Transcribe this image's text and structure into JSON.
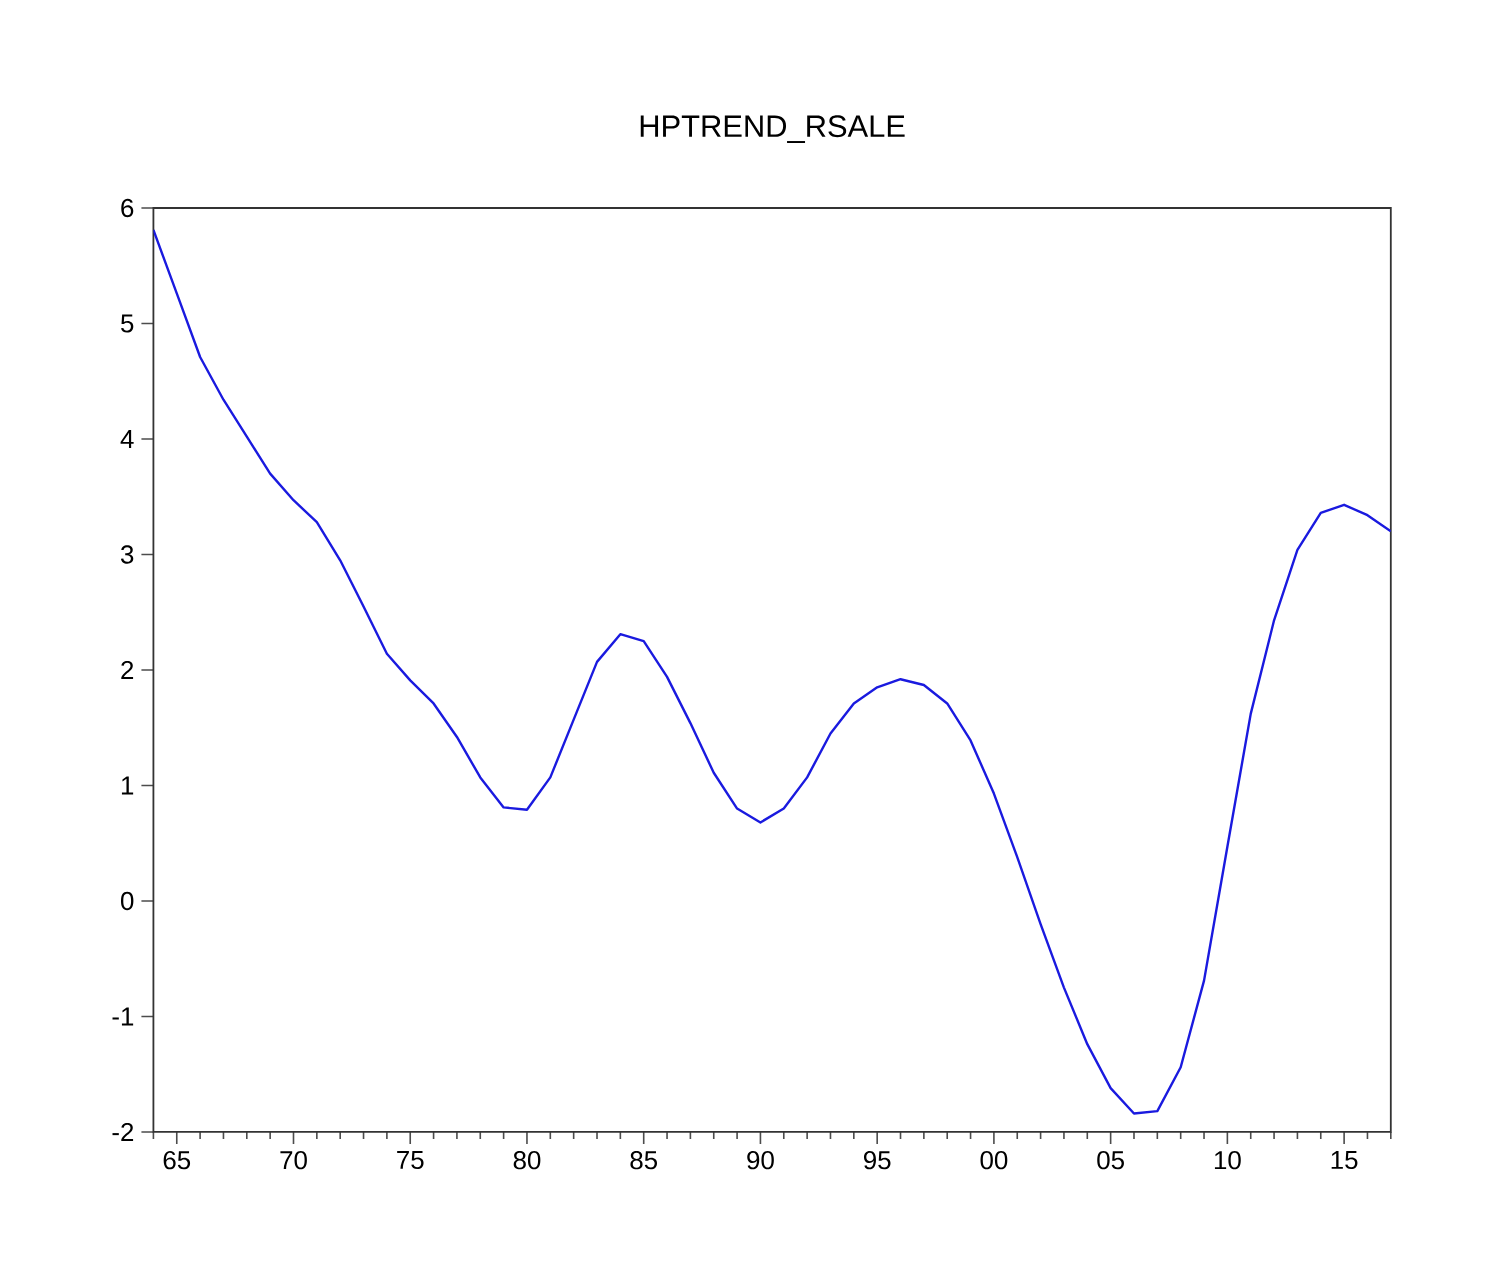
{
  "chart_data": {
    "type": "line",
    "title": "HPTREND_RSALE",
    "x": [
      1964,
      1965,
      1966,
      1967,
      1968,
      1969,
      1970,
      1971,
      1972,
      1973,
      1974,
      1975,
      1976,
      1977,
      1978,
      1979,
      1980,
      1981,
      1982,
      1983,
      1984,
      1985,
      1986,
      1987,
      1988,
      1989,
      1990,
      1991,
      1992,
      1993,
      1994,
      1995,
      1996,
      1997,
      1998,
      1999,
      2000,
      2001,
      2002,
      2003,
      2004,
      2005,
      2006,
      2007,
      2008,
      2009,
      2010,
      2011,
      2012,
      2013,
      2014,
      2015,
      2016,
      2017
    ],
    "series": [
      {
        "color": "#1a1adf",
        "values": [
          5.81,
          5.26,
          4.71,
          4.34,
          4.02,
          3.7,
          3.47,
          3.28,
          2.95,
          2.55,
          2.14,
          1.91,
          1.71,
          1.42,
          1.07,
          0.81,
          0.79,
          1.07,
          1.57,
          2.07,
          2.31,
          2.25,
          1.94,
          1.54,
          1.11,
          0.8,
          0.68,
          0.8,
          1.07,
          1.45,
          1.71,
          1.85,
          1.92,
          1.87,
          1.71,
          1.39,
          0.93,
          0.38,
          -0.2,
          -0.75,
          -1.24,
          -1.62,
          -1.84,
          -1.82,
          -1.44,
          -0.69,
          0.47,
          1.62,
          2.43,
          3.04,
          3.36,
          3.43,
          3.34,
          3.2
        ]
      }
    ],
    "xlim": [
      1964,
      2017
    ],
    "ylim": [
      -2,
      6
    ],
    "yticks": [
      -2,
      -1,
      0,
      1,
      2,
      3,
      4,
      5,
      6
    ],
    "xticks": [
      {
        "value": 1964,
        "label": null
      },
      {
        "value": 1965,
        "label": "65"
      },
      {
        "value": 1966,
        "label": null
      },
      {
        "value": 1967,
        "label": null
      },
      {
        "value": 1968,
        "label": null
      },
      {
        "value": 1969,
        "label": null
      },
      {
        "value": 1970,
        "label": "70"
      },
      {
        "value": 1971,
        "label": null
      },
      {
        "value": 1972,
        "label": null
      },
      {
        "value": 1973,
        "label": null
      },
      {
        "value": 1974,
        "label": null
      },
      {
        "value": 1975,
        "label": "75"
      },
      {
        "value": 1976,
        "label": null
      },
      {
        "value": 1977,
        "label": null
      },
      {
        "value": 1978,
        "label": null
      },
      {
        "value": 1979,
        "label": null
      },
      {
        "value": 1980,
        "label": "80"
      },
      {
        "value": 1981,
        "label": null
      },
      {
        "value": 1982,
        "label": null
      },
      {
        "value": 1983,
        "label": null
      },
      {
        "value": 1984,
        "label": null
      },
      {
        "value": 1985,
        "label": "85"
      },
      {
        "value": 1986,
        "label": null
      },
      {
        "value": 1987,
        "label": null
      },
      {
        "value": 1988,
        "label": null
      },
      {
        "value": 1989,
        "label": null
      },
      {
        "value": 1990,
        "label": "90"
      },
      {
        "value": 1991,
        "label": null
      },
      {
        "value": 1992,
        "label": null
      },
      {
        "value": 1993,
        "label": null
      },
      {
        "value": 1994,
        "label": null
      },
      {
        "value": 1995,
        "label": "95"
      },
      {
        "value": 1996,
        "label": null
      },
      {
        "value": 1997,
        "label": null
      },
      {
        "value": 1998,
        "label": null
      },
      {
        "value": 1999,
        "label": null
      },
      {
        "value": 2000,
        "label": "00"
      },
      {
        "value": 2001,
        "label": null
      },
      {
        "value": 2002,
        "label": null
      },
      {
        "value": 2003,
        "label": null
      },
      {
        "value": 2004,
        "label": null
      },
      {
        "value": 2005,
        "label": "05"
      },
      {
        "value": 2006,
        "label": null
      },
      {
        "value": 2007,
        "label": null
      },
      {
        "value": 2008,
        "label": null
      },
      {
        "value": 2009,
        "label": null
      },
      {
        "value": 2010,
        "label": "10"
      },
      {
        "value": 2011,
        "label": null
      },
      {
        "value": 2012,
        "label": null
      },
      {
        "value": 2013,
        "label": null
      },
      {
        "value": 2014,
        "label": null
      },
      {
        "value": 2015,
        "label": "15"
      },
      {
        "value": 2016,
        "label": null
      },
      {
        "value": 2017,
        "label": null
      }
    ],
    "grid": false,
    "marker": "none",
    "line_style": "solid"
  }
}
